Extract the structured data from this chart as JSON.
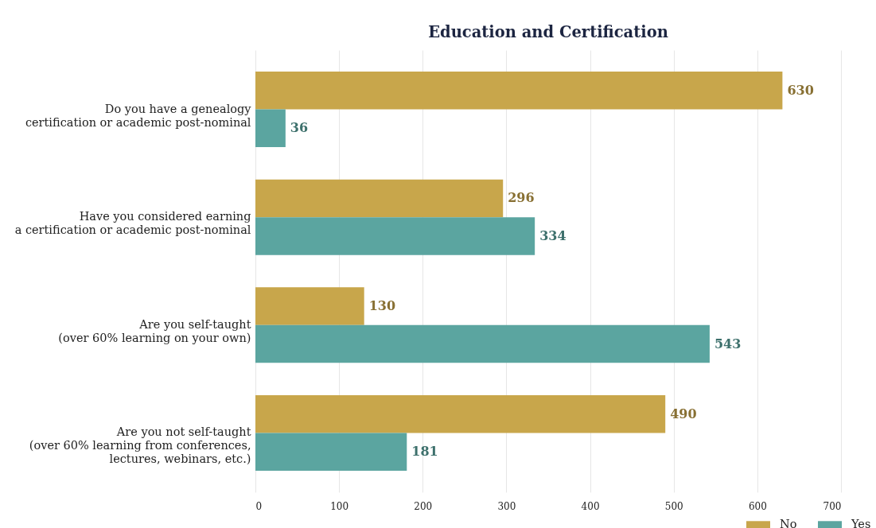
{
  "chart_data": {
    "type": "bar",
    "title": "Education and Certification",
    "orientation": "horizontal",
    "categories": [
      "Do you have a genealogy\ncertification or academic post-nominal",
      "Have you considered earning\na certification or academic post-nominal",
      "Are you self-taught\n(over 60% learning on your own)",
      "Are you not self-taught\n(over 60% learning from conferences,\nlectures, webinars, etc.)"
    ],
    "series": [
      {
        "name": "No",
        "color": "#c8a64b",
        "values": [
          630,
          296,
          130,
          490
        ]
      },
      {
        "name": "Yes",
        "color": "#5ba5a0",
        "values": [
          36,
          334,
          543,
          181
        ]
      }
    ],
    "xlim": [
      0,
      700
    ],
    "xticks": [
      0,
      100,
      200,
      300,
      400,
      500,
      600,
      700
    ],
    "grid": "x",
    "legend": "bottom right",
    "data_labels": true
  }
}
